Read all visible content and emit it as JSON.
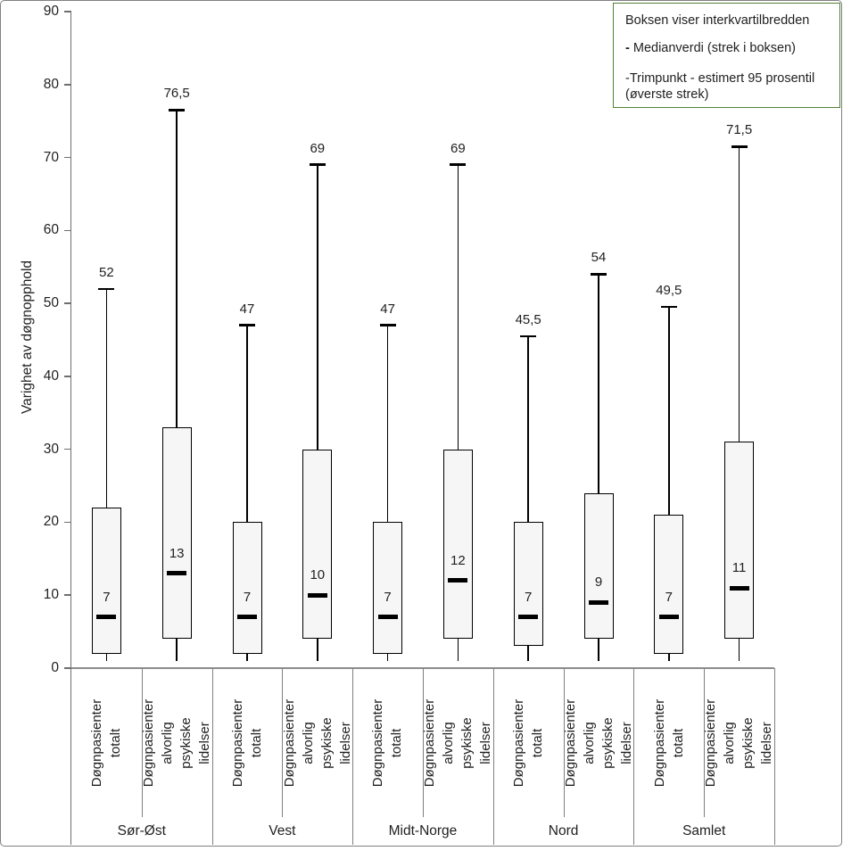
{
  "colors": {
    "legend_border": "#538135",
    "box_fill": "#f6f6f6",
    "box_border": "#000000",
    "grid_line": "#808080",
    "text": "#1f1f1f"
  },
  "legend": {
    "line1": "Boksen viser interkvartilbredden",
    "line2_dash": "-",
    "line2_text": " Medianverdi (strek i boksen)",
    "line3": "-Trimpunkt - estimert 95 prosentil",
    "line4": "(øverste strek)"
  },
  "chart_data": {
    "type": "boxplot",
    "ylabel": "Varighet av døgnopphold",
    "ylim": [
      0,
      90
    ],
    "yticks": [
      0,
      10,
      20,
      30,
      40,
      50,
      60,
      70,
      80,
      90
    ],
    "grid": false,
    "legend_position": "top-right",
    "groups": [
      "Sør-Øst",
      "Vest",
      "Midt-Norge",
      "Nord",
      "Samlet"
    ],
    "category_labels": [
      "Døgnpasienter totalt",
      "Døgnpasienter alvorlig\npsykiske lidelser"
    ],
    "boxes": [
      {
        "group": "Sør-Øst",
        "category": "Døgnpasienter totalt",
        "category_display": "Døgnpasienter totalt",
        "whisker_low": 1,
        "q1": 2,
        "median": 7,
        "q3": 22,
        "p95": 52,
        "p95_label": "52",
        "median_label": "7"
      },
      {
        "group": "Sør-Øst",
        "category": "Døgnpasienter alvorlig psykiske lidelser",
        "category_display": "Døgnpasienter alvorlig\npsykiske lidelser",
        "whisker_low": 1,
        "q1": 4,
        "median": 13,
        "q3": 33,
        "p95": 76.5,
        "p95_label": "76,5",
        "median_label": "13"
      },
      {
        "group": "Vest",
        "category": "Døgnpasienter totalt",
        "category_display": "Døgnpasienter totalt",
        "whisker_low": 1,
        "q1": 2,
        "median": 7,
        "q3": 20,
        "p95": 47,
        "p95_label": "47",
        "median_label": "7"
      },
      {
        "group": "Vest",
        "category": "Døgnpasienter alvorlig psykiske lidelser",
        "category_display": "Døgnpasienter alvorlig\npsykiske lidelser",
        "whisker_low": 1,
        "q1": 4,
        "median": 10,
        "q3": 30,
        "p95": 69,
        "p95_label": "69",
        "median_label": "10"
      },
      {
        "group": "Midt-Norge",
        "category": "Døgnpasienter totalt",
        "category_display": "Døgnpasienter totalt",
        "whisker_low": 1,
        "q1": 2,
        "median": 7,
        "q3": 20,
        "p95": 47,
        "p95_label": "47",
        "median_label": "7"
      },
      {
        "group": "Midt-Norge",
        "category": "Døgnpasienter alvorlig psykiske lidelser",
        "category_display": "Døgnpasienter alvorlig\npsykiske lidelser",
        "whisker_low": 1,
        "q1": 4,
        "median": 12,
        "q3": 30,
        "p95": 69,
        "p95_label": "69",
        "median_label": "12"
      },
      {
        "group": "Nord",
        "category": "Døgnpasienter totalt",
        "category_display": "Døgnpasienter totalt",
        "whisker_low": 1,
        "q1": 3,
        "median": 7,
        "q3": 20,
        "p95": 45.5,
        "p95_label": "45,5",
        "median_label": "7"
      },
      {
        "group": "Nord",
        "category": "Døgnpasienter alvorlig psykiske lidelser",
        "category_display": "Døgnpasienter alvorlig\npsykiske lidelser",
        "whisker_low": 1,
        "q1": 4,
        "median": 9,
        "q3": 24,
        "p95": 54,
        "p95_label": "54",
        "median_label": "9"
      },
      {
        "group": "Samlet",
        "category": "Døgnpasienter totalt",
        "category_display": "Døgnpasienter totalt",
        "whisker_low": 1,
        "q1": 2,
        "median": 7,
        "q3": 21,
        "p95": 49.5,
        "p95_label": "49,5",
        "median_label": "7"
      },
      {
        "group": "Samlet",
        "category": "Døgnpasienter alvorlig psykiske lidelser",
        "category_display": "Døgnpasienter alvorlig\npsykiske lidelser",
        "whisker_low": 1,
        "q1": 4,
        "median": 11,
        "q3": 31,
        "p95": 71.5,
        "p95_label": "71,5",
        "median_label": "11"
      }
    ]
  }
}
